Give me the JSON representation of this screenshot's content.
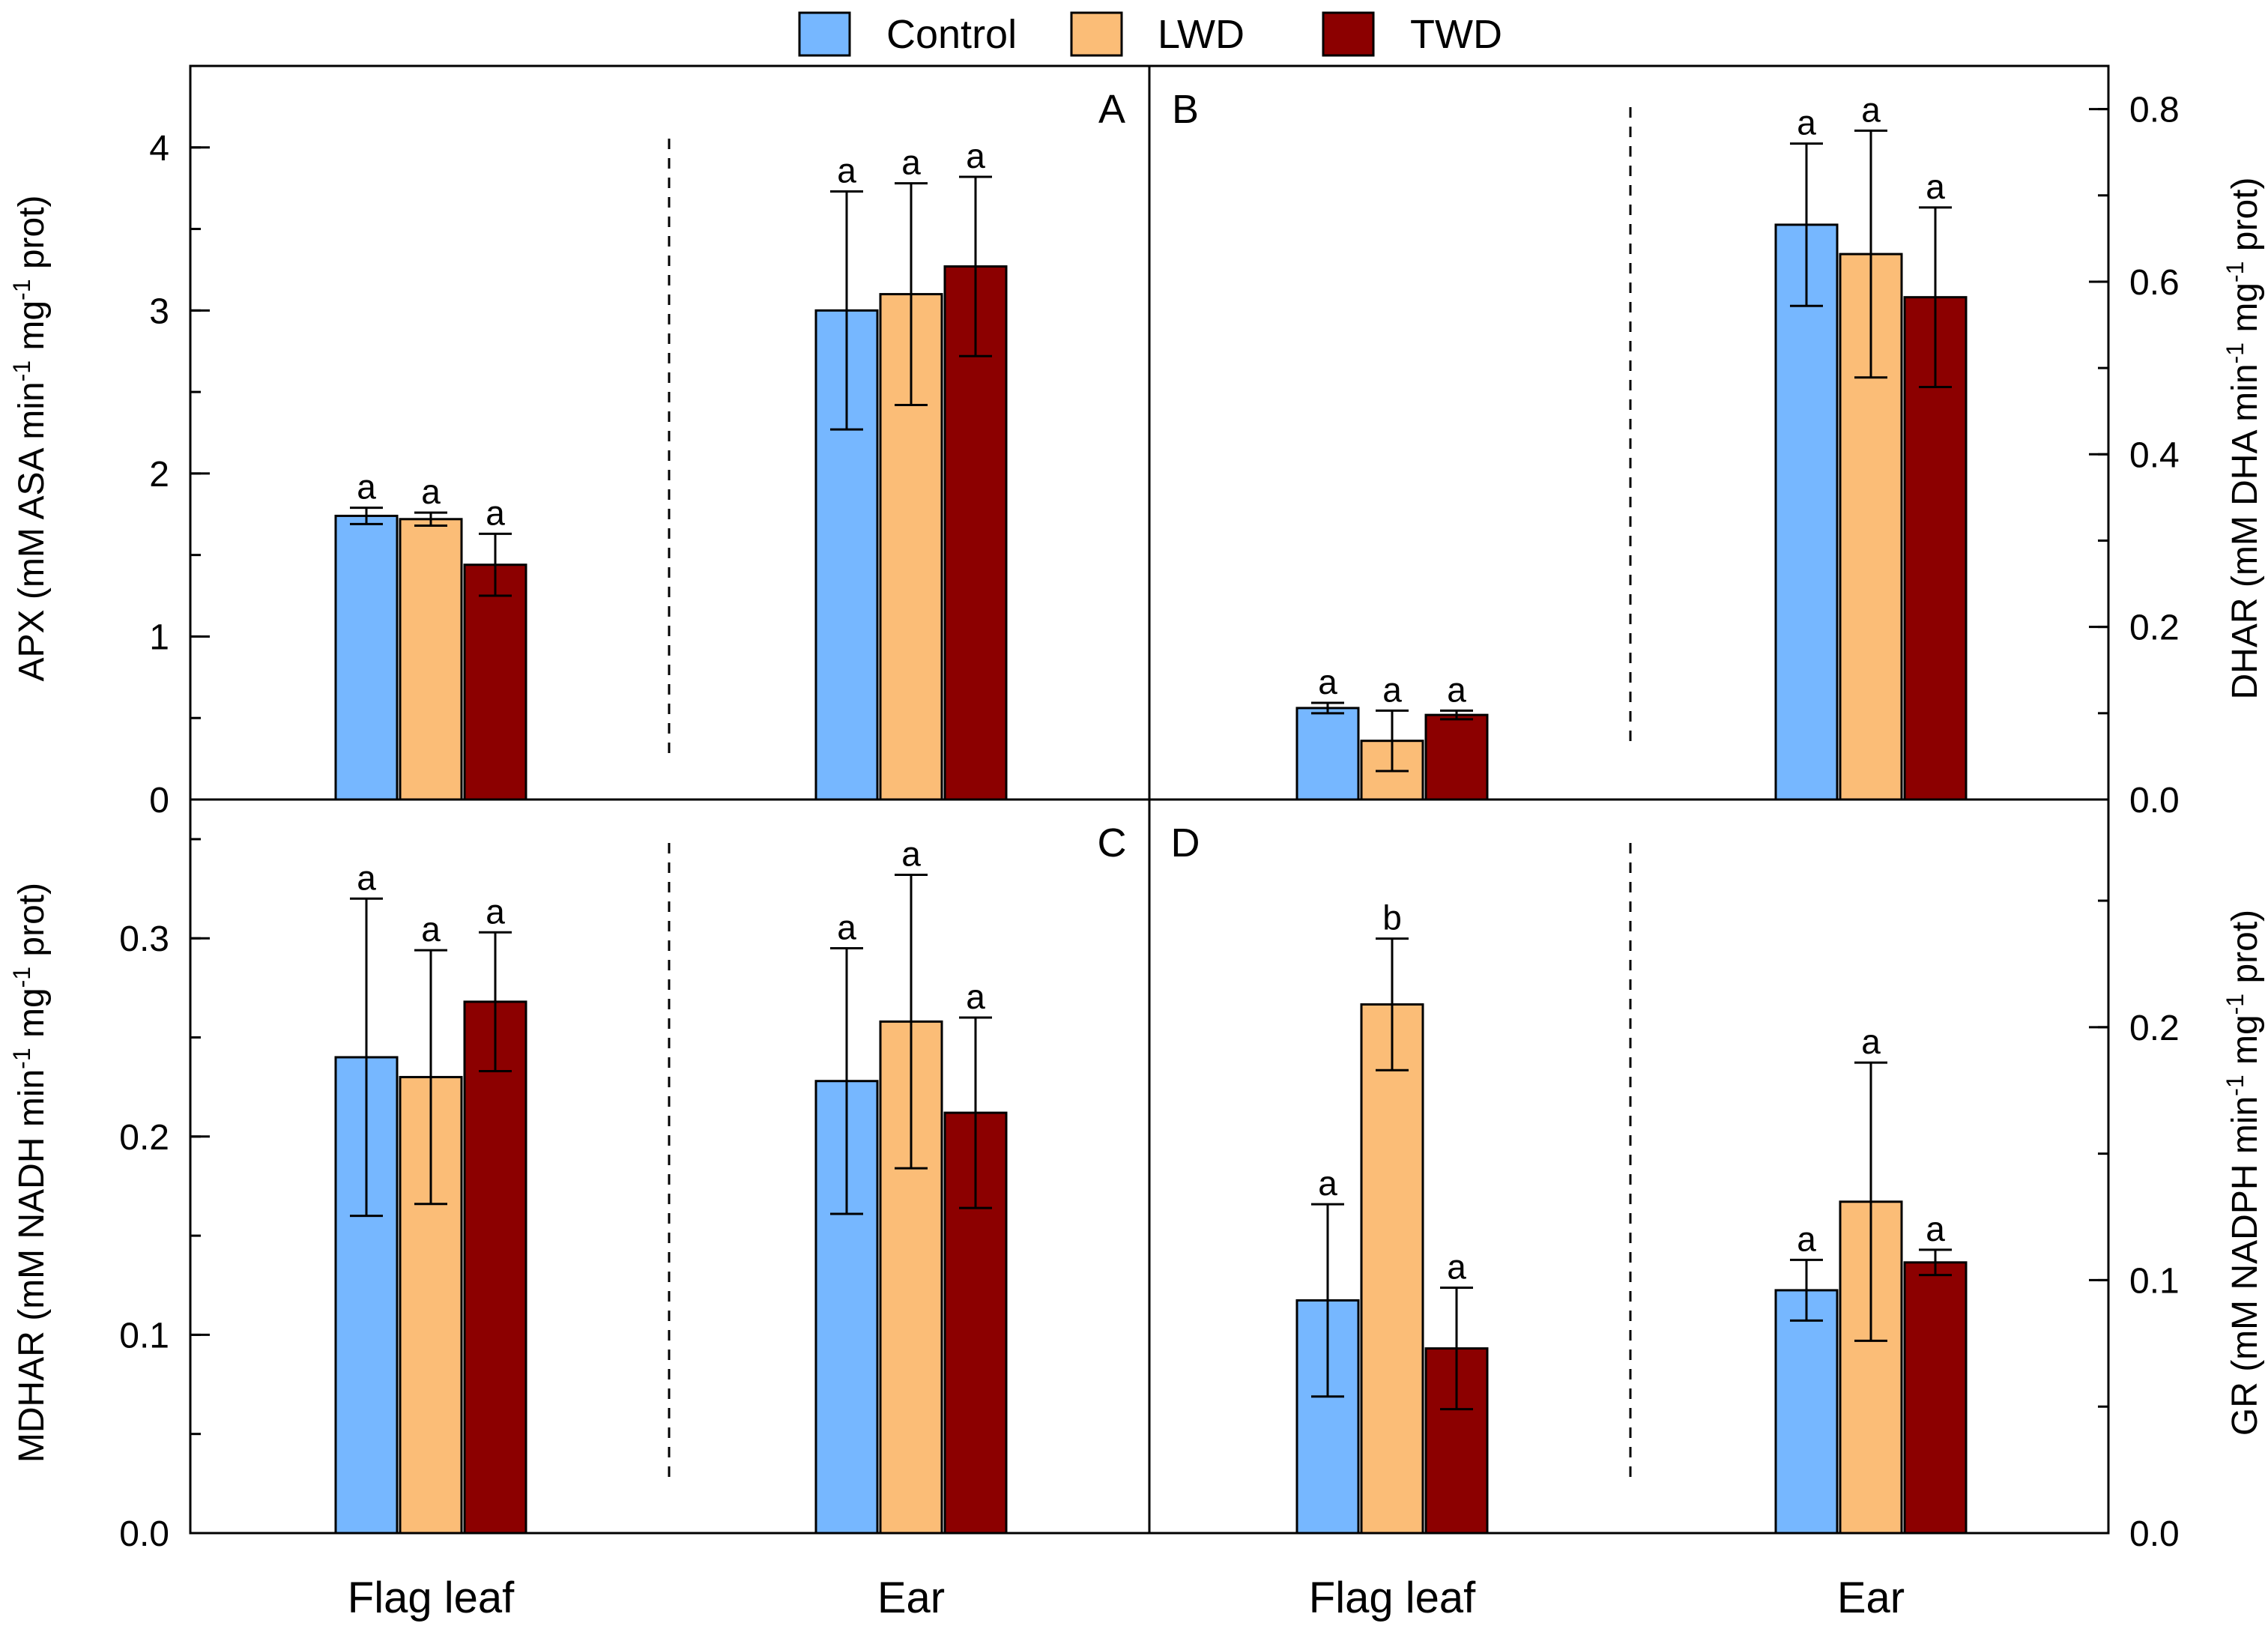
{
  "legend": [
    {
      "name": "Control",
      "color": "#76b7ff"
    },
    {
      "name": "LWD",
      "color": "#fbbd77"
    },
    {
      "name": "TWD",
      "color": "#8c0000"
    }
  ],
  "categories": [
    "Flag leaf",
    "Ear"
  ],
  "chart_data": [
    {
      "id": "A",
      "panel_label": "A",
      "type": "bar",
      "ylabel": "APX (mM ASA min^-1 mg^-1 prot)",
      "ylabel_parts": [
        [
          "APX (mM ASA min",
          ""
        ],
        [
          "-1",
          "sup"
        ],
        [
          " mg",
          ""
        ],
        [
          "-1",
          "sup"
        ],
        [
          " prot)",
          ""
        ]
      ],
      "ylim": [
        0,
        4.5
      ],
      "yticks": [
        0,
        1,
        2,
        3,
        4
      ],
      "yticklabels": [
        "0",
        "1",
        "2",
        "3",
        "4"
      ],
      "minor_step": 0.5,
      "categories": [
        "Flag leaf",
        "Ear"
      ],
      "series": [
        {
          "name": "Control",
          "values": [
            1.74,
            3.0
          ],
          "errors": [
            0.05,
            0.73
          ],
          "letters": [
            "a",
            "a"
          ]
        },
        {
          "name": "LWD",
          "values": [
            1.72,
            3.1
          ],
          "errors": [
            0.04,
            0.68
          ],
          "letters": [
            "a",
            "a"
          ]
        },
        {
          "name": "TWD",
          "values": [
            1.44,
            3.27
          ],
          "errors": [
            0.19,
            0.55
          ],
          "letters": [
            "a",
            "a"
          ]
        }
      ]
    },
    {
      "id": "B",
      "panel_label": "B",
      "type": "bar",
      "ylabel": "DHAR (mM DHA min^-1 mg^-1 prot)",
      "ylabel_parts": [
        [
          "DHAR (mM DHA min",
          ""
        ],
        [
          "-1",
          "sup"
        ],
        [
          " mg",
          ""
        ],
        [
          "-1",
          "sup"
        ],
        [
          " prot)",
          ""
        ]
      ],
      "ylim": [
        0,
        0.85
      ],
      "yticks": [
        0,
        0.2,
        0.4,
        0.6,
        0.8
      ],
      "yticklabels": [
        "0.0",
        "0.2",
        "0.4",
        "0.6",
        "0.8"
      ],
      "minor_step": 0.1,
      "categories": [
        "Flag leaf",
        "Ear"
      ],
      "series": [
        {
          "name": "Control",
          "values": [
            0.106,
            0.666
          ],
          "errors": [
            0.006,
            0.094
          ],
          "letters": [
            "a",
            "a"
          ]
        },
        {
          "name": "LWD",
          "values": [
            0.068,
            0.632
          ],
          "errors": [
            0.035,
            0.143
          ],
          "letters": [
            "a",
            "a"
          ]
        },
        {
          "name": "TWD",
          "values": [
            0.098,
            0.582
          ],
          "errors": [
            0.005,
            0.104
          ],
          "letters": [
            "a",
            "a"
          ]
        }
      ]
    },
    {
      "id": "C",
      "panel_label": "C",
      "type": "bar",
      "ylabel": "MDHAR (mM NADH min^-1 mg^-1 prot)",
      "ylabel_parts": [
        [
          "MDHAR (mM NADH min",
          ""
        ],
        [
          "-1",
          "sup"
        ],
        [
          " mg",
          ""
        ],
        [
          "-1",
          "sup"
        ],
        [
          " prot)",
          ""
        ]
      ],
      "ylim": [
        0,
        0.37
      ],
      "yticks": [
        0,
        0.1,
        0.2,
        0.3
      ],
      "yticklabels": [
        "0.0",
        "0.1",
        "0.2",
        "0.3"
      ],
      "minor_step": 0.05,
      "categories": [
        "Flag leaf",
        "Ear"
      ],
      "series": [
        {
          "name": "Control",
          "values": [
            0.24,
            0.228
          ],
          "errors": [
            0.08,
            0.067
          ],
          "letters": [
            "a",
            "a"
          ]
        },
        {
          "name": "LWD",
          "values": [
            0.23,
            0.258
          ],
          "errors": [
            0.064,
            0.074
          ],
          "letters": [
            "a",
            "a"
          ]
        },
        {
          "name": "TWD",
          "values": [
            0.268,
            0.212
          ],
          "errors": [
            0.035,
            0.048
          ],
          "letters": [
            "a",
            "a"
          ]
        }
      ]
    },
    {
      "id": "D",
      "panel_label": "D",
      "type": "bar",
      "ylabel": "GR (mM NADPH min^-1 mg^-1 prot)",
      "ylabel_parts": [
        [
          "GR (mM NADPH min",
          ""
        ],
        [
          "-1",
          "sup"
        ],
        [
          " mg",
          ""
        ],
        [
          "-1",
          "sup"
        ],
        [
          " prot)",
          ""
        ]
      ],
      "ylim": [
        0,
        0.29
      ],
      "yticks": [
        0,
        0.1,
        0.2
      ],
      "yticklabels": [
        "0.0",
        "0.1",
        "0.2"
      ],
      "minor_step": 0.05,
      "categories": [
        "Flag leaf",
        "Ear"
      ],
      "series": [
        {
          "name": "Control",
          "values": [
            0.092,
            0.096
          ],
          "errors": [
            0.038,
            0.012
          ],
          "letters": [
            "a",
            "a"
          ]
        },
        {
          "name": "LWD",
          "values": [
            0.209,
            0.131
          ],
          "errors": [
            0.026,
            0.055
          ],
          "letters": [
            "b",
            "a"
          ]
        },
        {
          "name": "TWD",
          "values": [
            0.073,
            0.107
          ],
          "errors": [
            0.024,
            0.005
          ],
          "letters": [
            "a",
            "a"
          ]
        }
      ]
    }
  ]
}
